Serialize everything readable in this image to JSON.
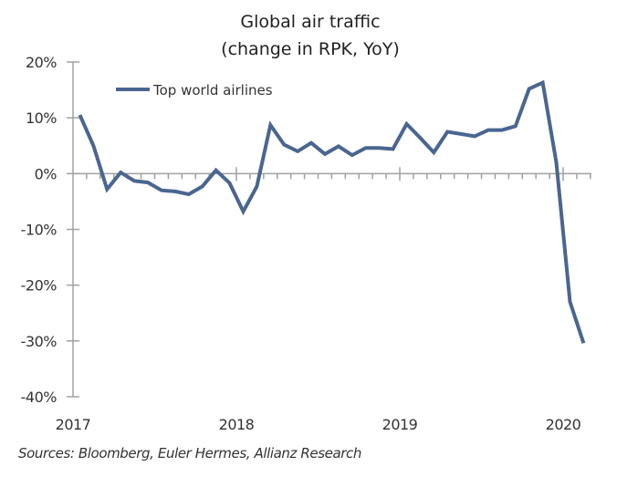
{
  "chart_data": {
    "type": "line",
    "title": [
      "Global air traffic",
      "(change in RPK, YoY)"
    ],
    "xlabel": "",
    "ylabel": "",
    "ylim": [
      -40,
      20
    ],
    "yticks": [
      20,
      10,
      0,
      -10,
      -20,
      -30,
      -40
    ],
    "ytick_labels": [
      "20%",
      "10%",
      "0%",
      "-10%",
      "-20%",
      "-30%",
      "-40%"
    ],
    "x_start": "2017-01",
    "x_end_months": 38,
    "xtick_labels": [
      "2017",
      "2018",
      "2019",
      "2020"
    ],
    "grid": false,
    "legend": {
      "position": "top-left"
    },
    "color": "#4a6590",
    "x": [
      "2017-01",
      "2017-02",
      "2017-03",
      "2017-04",
      "2017-05",
      "2017-06",
      "2017-07",
      "2017-08",
      "2017-09",
      "2017-10",
      "2017-11",
      "2017-12",
      "2018-01",
      "2018-02",
      "2018-03",
      "2018-04",
      "2018-05",
      "2018-06",
      "2018-07",
      "2018-08",
      "2018-09",
      "2018-10",
      "2018-11",
      "2018-12",
      "2019-01",
      "2019-02",
      "2019-03",
      "2019-04",
      "2019-05",
      "2019-06",
      "2019-07",
      "2019-08",
      "2019-09",
      "2019-10",
      "2019-11",
      "2019-12",
      "2020-01",
      "2020-02"
    ],
    "series": [
      {
        "name": "Top world airlines",
        "values": [
          10.5,
          5.0,
          -2.8,
          0.2,
          -1.3,
          -1.6,
          -3.0,
          -3.2,
          -3.7,
          -2.3,
          0.6,
          -1.7,
          -6.8,
          -2.3,
          8.7,
          5.2,
          4.0,
          5.5,
          3.5,
          4.9,
          3.3,
          4.6,
          4.6,
          4.4,
          8.9,
          6.4,
          3.8,
          7.5,
          7.1,
          6.7,
          7.8,
          7.8,
          8.5,
          15.2,
          16.3,
          2.0,
          -23.0,
          -30.4
        ]
      }
    ]
  },
  "source": "Sources: Bloomberg, Euler Hermes, Allianz Research"
}
